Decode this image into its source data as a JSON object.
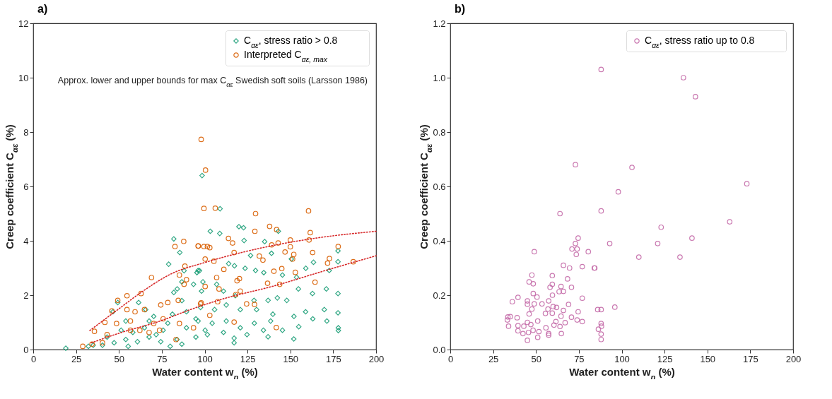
{
  "chart_data": [
    {
      "type": "scatter",
      "title": "a)",
      "xlabel": "Water content w$_{n}$ (%)",
      "ylabel": "Creep coefficient C$_{αε}$ (%)",
      "xlim": [
        0,
        200
      ],
      "xticks": [
        0,
        25,
        50,
        75,
        100,
        125,
        150,
        175,
        200
      ],
      "ylim": [
        0,
        12
      ],
      "yticks": [
        0,
        2,
        4,
        6,
        8,
        10,
        12
      ],
      "legend": "top right",
      "annotations": [
        "Approx. lower and upper bounds for max C$_{αε}$ Swedish soft soils (Larsson 1986)"
      ],
      "series": [
        {
          "name": "C$_{αε}$, stress ratio > 0.8",
          "color": "#1b9e77",
          "marker": "diamond",
          "x": [
            98.5,
            82,
            85.5,
            79,
            95.5,
            97,
            88,
            93.5,
            84,
            82,
            86.7,
            98.2,
            19,
            49.3,
            61.5,
            46.5,
            65.6,
            54,
            58.1,
            67.6,
            75.8,
            81.2,
            86.7,
            94.9,
            100.3,
            83.9,
            86.7,
            74.4,
            67.6,
            60.8,
            54,
            47.2,
            40.4,
            35,
            32.2,
            43.1,
            51.3,
            64.9,
            71.7,
            78.5,
            89.4,
            94.9,
            70.3,
            89.4,
            97.6,
            55.4,
            79.9,
            109,
            120,
            122.7,
            103.3,
            108.8,
            123,
            143,
            135,
            126.8,
            139,
            150.6,
            163.5,
            177.8,
            177.8,
            114,
            117.4,
            123.6,
            129.7,
            134.5,
            145.4,
            153.6,
            159,
            172.7,
            96.2,
            99,
            107,
            111,
            117.9,
            128.8,
            137,
            142.4,
            147.9,
            154.7,
            162.9,
            171,
            177.8,
            105.8,
            112.6,
            120.8,
            130.3,
            139.8,
            152.1,
            158.9,
            169.8,
            177.8,
            96.2,
            104.4,
            112.6,
            120.8,
            129,
            138.5,
            145.4,
            154.9,
            163.1,
            171.3,
            178,
            178,
            101.6,
            111,
            117.2,
            117.2,
            124.7,
            137,
            152,
            134.3
          ],
          "values": [
            6.4,
            4.07,
            3.57,
            3.14,
            2.83,
            2.9,
            2.9,
            2.4,
            2.23,
            2.1,
            2.49,
            2.15,
            0.05,
            1.73,
            1.73,
            1.39,
            1.47,
            1.05,
            0.63,
            1.05,
            0.71,
            1.3,
            1.8,
            1.13,
            0.71,
            0.37,
            0.2,
            0.29,
            0.46,
            0.29,
            0.37,
            0.25,
            0.16,
            0.16,
            0.12,
            0.46,
            0.71,
            0.8,
            0.55,
            0.97,
            0.8,
            0.46,
            1.22,
            1.39,
            1.55,
            0.12,
            0.12,
            5.18,
            4.52,
            4.48,
            4.35,
            4.27,
            4.01,
            4.35,
            3.97,
            3.46,
            3.54,
            3.33,
            3.21,
            3.23,
            3.63,
            3.16,
            3.08,
            2.99,
            2.91,
            2.83,
            2.74,
            2.66,
            2.99,
            2.91,
            2.91,
            2.49,
            2.4,
            2.15,
            1.98,
            1.81,
            1.81,
            1.9,
            1.81,
            2.23,
            2.06,
            2.23,
            2.06,
            1.47,
            1.64,
            1.47,
            1.47,
            1.3,
            1.22,
            1.39,
            1.47,
            1.35,
            1.05,
            0.97,
            1.05,
            0.8,
            0.97,
            1.05,
            0.71,
            0.84,
            1.13,
            1.05,
            0.8,
            0.7,
            0.55,
            0.63,
            0.25,
            0.42,
            0.55,
            0.47,
            0.39,
            0.71
          ]
        },
        {
          "name": "Interpreted C$_{αε, max}$",
          "color": "#d95f02",
          "marker": "circle",
          "x": [
            98,
            100.5,
            99.6,
            87.8,
            82.7,
            96.3,
            99.6,
            100.3,
            88.5,
            69,
            85.3,
            89.4,
            88,
            100.3,
            54.7,
            62.9,
            45.9,
            49.3,
            54.7,
            59.4,
            64.9,
            74.4,
            78.5,
            84.6,
            97.6,
            41.8,
            48.6,
            56.7,
            62.2,
            70.3,
            75.8,
            85.3,
            93.5,
            35.7,
            43.1,
            56.7,
            67.6,
            28.9,
            34.3,
            40.4,
            83.3,
            73.7,
            106.2,
            129.7,
            160.6,
            137.9,
            142,
            161.6,
            129.3,
            113.9,
            116.3,
            96.2,
            101.6,
            103,
            139.1,
            142.9,
            150,
            160.9,
            177.9,
            150,
            117.2,
            105.4,
            131.9,
            134,
            146.9,
            152,
            151.3,
            163,
            172.8,
            171.7,
            186.7,
            111.2,
            140.4,
            145,
            152.9,
            107,
            120.3,
            118.9,
            136.7,
            143.8,
            164.4,
            108.4,
            120.8,
            118.1,
            107.6,
            98,
            124.5,
            129.1,
            103,
            117.2,
            141.8
          ],
          "values": [
            7.73,
            6.6,
            5.19,
            3.98,
            3.79,
            3.81,
            3.79,
            3.33,
            3.07,
            2.65,
            2.74,
            2.57,
            2.4,
            2.32,
            1.98,
            2.06,
            1.42,
            1.81,
            1.47,
            1.39,
            1.47,
            1.64,
            1.73,
            1.81,
            1.68,
            1.0,
            0.96,
            1.05,
            0.71,
            0.96,
            1.13,
            0.96,
            0.8,
            0.67,
            0.55,
            0.71,
            0.63,
            0.12,
            0.2,
            0.25,
            0.37,
            0.71,
            5.2,
            5.0,
            5.1,
            4.53,
            4.41,
            4.3,
            4.35,
            4.09,
            3.92,
            3.81,
            3.79,
            3.75,
            3.85,
            3.92,
            4.03,
            4.03,
            3.79,
            3.78,
            3.57,
            3.25,
            3.44,
            3.29,
            3.59,
            3.5,
            3.33,
            3.57,
            3.35,
            3.18,
            3.23,
            2.95,
            2.88,
            2.98,
            2.84,
            2.65,
            2.61,
            2.53,
            2.44,
            2.4,
            2.48,
            2.23,
            2.15,
            2.02,
            1.76,
            1.72,
            1.68,
            1.66,
            1.26,
            1.01,
            0.81
          ]
        },
        {
          "type": "line",
          "color": "#d62728",
          "line_style": "dotted",
          "marker": "none",
          "x": [
            33,
            50,
            64,
            81,
            100,
            134,
            165,
            200
          ],
          "values": [
            0.7,
            1.5,
            2.15,
            2.8,
            3.2,
            3.75,
            4.1,
            4.35
          ]
        },
        {
          "type": "line",
          "color": "#d62728",
          "line_style": "dotted",
          "marker": "none",
          "x": [
            34,
            50,
            74,
            93,
            110,
            141,
            170,
            200
          ],
          "values": [
            0.25,
            0.6,
            1.05,
            1.5,
            1.85,
            2.35,
            2.9,
            3.45
          ]
        }
      ]
    },
    {
      "type": "scatter",
      "title": "b)",
      "xlabel": "Water content w$_{n}$ (%)",
      "ylabel": "Creep coefficient C$_{αε}$ (%)",
      "xlim": [
        0,
        200
      ],
      "xticks": [
        0,
        25,
        50,
        75,
        100,
        125,
        150,
        175,
        200
      ],
      "ylim": [
        0,
        1.2
      ],
      "yticks": [
        {
          "value": 0,
          "label": "0.0"
        },
        0.2,
        0.4,
        0.6,
        0.8,
        {
          "value": 1,
          "label": "1.0"
        },
        1.2
      ],
      "legend": "top right",
      "series": [
        {
          "name": "C$_{αε}$, stress ratio up to 0.8",
          "color": "#c46aa8",
          "marker": "circle",
          "x": [
            173,
            98,
            64,
            88,
            163,
            123,
            141,
            121,
            93,
            110,
            134,
            49,
            74.6,
            73,
            74,
            71,
            73.5,
            80.5,
            66,
            69.6,
            77,
            84,
            84.3,
            47.6,
            59.5,
            68.4,
            46,
            48.4,
            59.5,
            58.2,
            64.6,
            70.7,
            48.4,
            50.6,
            63.5,
            66,
            59.6,
            77,
            39.5,
            36.2,
            45,
            45,
            49,
            53.5,
            57.4,
            69,
            47.6,
            57,
            60,
            62,
            66,
            74.6,
            86,
            88,
            96,
            46,
            55.5,
            59.5,
            64.6,
            70.7,
            74,
            77,
            67,
            61.6,
            33.6,
            35,
            39,
            33.3,
            34,
            39.5,
            39.5,
            42.9,
            45,
            47,
            48.3,
            45.6,
            42.4,
            45,
            51,
            51.7,
            51,
            55.8,
            57.4,
            57.4,
            60.5,
            64,
            64.8,
            88,
            88.2,
            86.4,
            88,
            88,
            88,
            136,
            143,
            73,
            106
          ],
          "values": [
            0.61,
            0.58,
            0.5,
            0.51,
            0.47,
            0.45,
            0.41,
            0.39,
            0.39,
            0.34,
            0.34,
            0.36,
            0.41,
            0.39,
            0.37,
            0.37,
            0.35,
            0.36,
            0.31,
            0.3,
            0.305,
            0.3,
            0.3,
            0.274,
            0.272,
            0.26,
            0.249,
            0.242,
            0.24,
            0.229,
            0.232,
            0.229,
            0.206,
            0.193,
            0.213,
            0.214,
            0.2,
            0.189,
            0.192,
            0.176,
            0.179,
            0.167,
            0.168,
            0.168,
            0.179,
            0.166,
            0.149,
            0.149,
            0.158,
            0.155,
            0.144,
            0.139,
            0.147,
            0.147,
            0.156,
            0.131,
            0.133,
            0.134,
            0.123,
            0.119,
            0.109,
            0.103,
            0.099,
            0.103,
            0.12,
            0.121,
            0.117,
            0.109,
            0.086,
            0.088,
            0.069,
            0.086,
            0.1,
            0.092,
            0.071,
            0.063,
            0.059,
            0.034,
            0.045,
            0.066,
            0.105,
            0.08,
            0.059,
            0.053,
            0.09,
            0.085,
            0.059,
            0.096,
            0.086,
            0.075,
            0.057,
            0.037,
            1.03,
            1.0,
            0.93,
            0.68,
            0.67
          ]
        }
      ]
    }
  ]
}
